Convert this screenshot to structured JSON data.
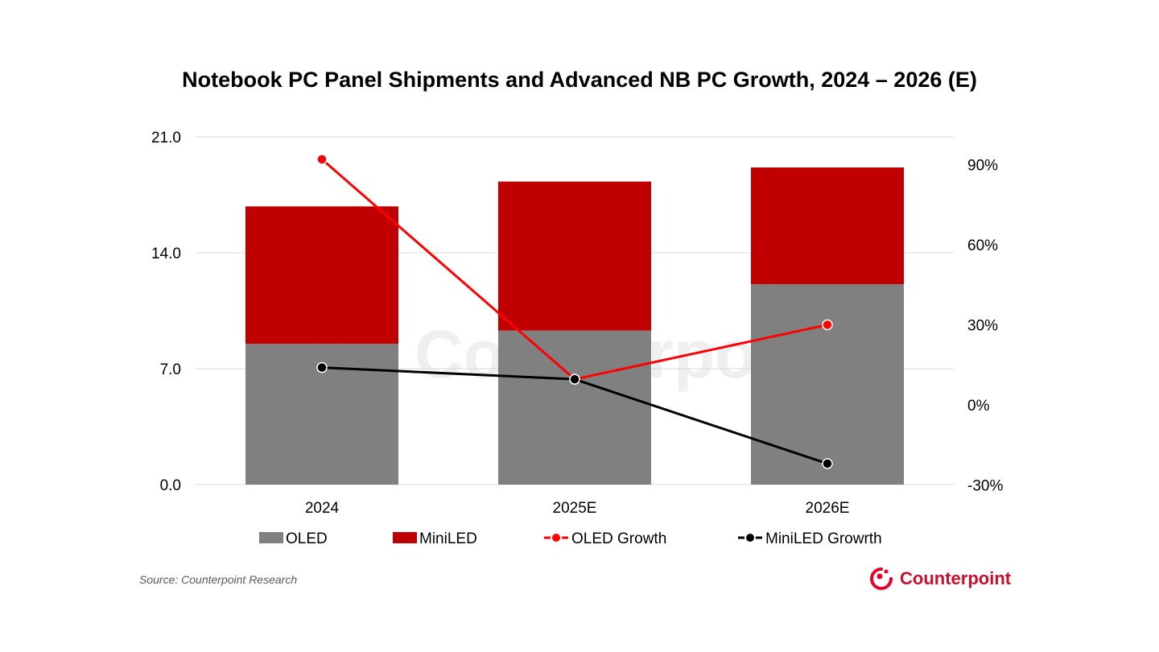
{
  "chart_data": {
    "type": "bar",
    "title": "Notebook PC Panel Shipments and Advanced NB PC Growth, 2024 – 2026 (E)",
    "categories": [
      "2024",
      "2025E",
      "2026E"
    ],
    "stacked": true,
    "series": [
      {
        "name": "OLED",
        "type": "bar",
        "axis": "left",
        "color": "#808080",
        "values": [
          8.5,
          9.3,
          12.1
        ]
      },
      {
        "name": "MiniLED",
        "type": "bar",
        "axis": "left",
        "color": "#c00000",
        "values": [
          8.3,
          9.0,
          7.05
        ]
      },
      {
        "name": "OLED Growth",
        "type": "line",
        "axis": "right",
        "color": "#ff0000",
        "values": [
          92,
          9.6,
          30
        ]
      },
      {
        "name": "MiniLED Growrth",
        "type": "line",
        "axis": "right",
        "color": "#000000",
        "values": [
          14,
          9.6,
          -22
        ]
      }
    ],
    "left_axis": {
      "ylim": [
        0,
        21
      ],
      "ticks": [
        "0.0",
        "7.0",
        "14.0",
        "21.0"
      ],
      "tick_values": [
        0,
        7,
        14,
        21
      ]
    },
    "right_axis": {
      "ylim": [
        -30,
        100
      ],
      "ticks": [
        "-30%",
        "0%",
        "30%",
        "60%",
        "90%"
      ],
      "tick_values": [
        -30,
        0,
        30,
        60,
        90
      ]
    },
    "grid": true,
    "legend": "bottom"
  },
  "source": "Source: Counterpoint Research",
  "logo": "Counterpoint",
  "watermark": "Counterpoint"
}
